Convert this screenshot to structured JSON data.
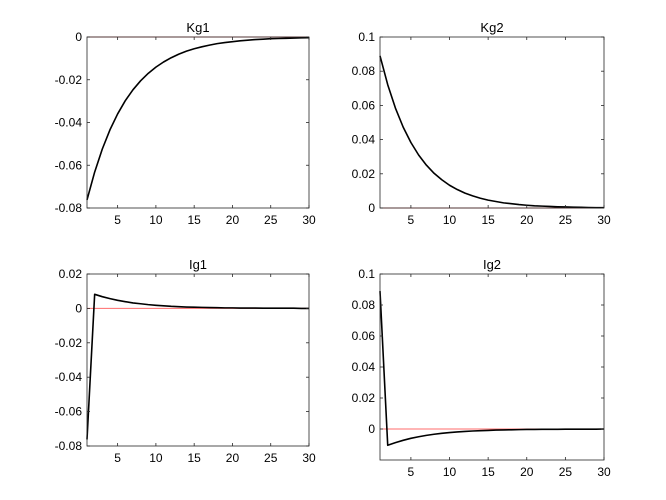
{
  "chart_data": [
    {
      "type": "line",
      "title": "Kg1",
      "xlim": [
        1,
        30
      ],
      "ylim": [
        -0.08,
        0
      ],
      "xticks": [
        5,
        10,
        15,
        20,
        25,
        30
      ],
      "yticks": [
        0,
        -0.02,
        -0.04,
        -0.06,
        -0.08
      ],
      "ytick_labels": [
        "0",
        "-0.02",
        "-0.04",
        "-0.06",
        "-0.08"
      ],
      "zero_line_color": "#ff6b6b",
      "series_color": "#000000",
      "series": [
        {
          "x": [
            1,
            2,
            3,
            4,
            5,
            6,
            7,
            8,
            9,
            10,
            11,
            12,
            13,
            14,
            15,
            16,
            17,
            18,
            19,
            20,
            21,
            22,
            23,
            24,
            25,
            26,
            27,
            28,
            29,
            30
          ],
          "values": [
            -0.0762,
            -0.0632,
            -0.0524,
            -0.0434,
            -0.036,
            -0.0298,
            -0.0247,
            -0.0205,
            -0.017,
            -0.0141,
            -0.0117,
            -0.0097,
            -0.008,
            -0.0066,
            -0.0055,
            -0.0046,
            -0.0038,
            -0.0031,
            -0.0026,
            -0.0022,
            -0.0018,
            -0.0015,
            -0.0012,
            -0.001,
            -0.0008,
            -0.0007,
            -0.0006,
            -0.0005,
            -0.0004,
            -0.0003
          ]
        }
      ]
    },
    {
      "type": "line",
      "title": "Kg2",
      "xlim": [
        1,
        30
      ],
      "ylim": [
        0,
        0.1
      ],
      "xticks": [
        5,
        10,
        15,
        20,
        25,
        30
      ],
      "yticks": [
        0,
        0.02,
        0.04,
        0.06,
        0.08,
        0.1
      ],
      "ytick_labels": [
        "0",
        "0.02",
        "0.04",
        "0.06",
        "0.08",
        "0.1"
      ],
      "zero_line_color": "#ff6b6b",
      "series_color": "#000000",
      "series": [
        {
          "x": [
            1,
            2,
            3,
            4,
            5,
            6,
            7,
            8,
            9,
            10,
            11,
            12,
            13,
            14,
            15,
            16,
            17,
            18,
            19,
            20,
            21,
            22,
            23,
            24,
            25,
            26,
            27,
            28,
            29,
            30
          ],
          "values": [
            0.089,
            0.0721,
            0.0584,
            0.0473,
            0.0383,
            0.031,
            0.0251,
            0.0203,
            0.0165,
            0.0133,
            0.0108,
            0.0087,
            0.0071,
            0.0057,
            0.0046,
            0.0038,
            0.003,
            0.0025,
            0.002,
            0.0016,
            0.0013,
            0.0011,
            0.0009,
            0.0007,
            0.0006,
            0.0005,
            0.0004,
            0.0003,
            0.0002,
            0.0002
          ]
        }
      ]
    },
    {
      "type": "line",
      "title": "Ig1",
      "xlim": [
        1,
        30
      ],
      "ylim": [
        -0.08,
        0.02
      ],
      "xticks": [
        5,
        10,
        15,
        20,
        25,
        30
      ],
      "yticks": [
        0.02,
        0,
        -0.02,
        -0.04,
        -0.06,
        -0.08
      ],
      "ytick_labels": [
        "0.02",
        "0",
        "-0.02",
        "-0.04",
        "-0.06",
        "-0.08"
      ],
      "zero_line_color": "#ff6b6b",
      "series_color": "#000000",
      "series": [
        {
          "x": [
            1,
            2,
            3,
            4,
            5,
            6,
            7,
            8,
            9,
            10,
            11,
            12,
            13,
            14,
            15,
            16,
            17,
            18,
            19,
            20,
            21,
            22,
            23,
            24,
            25,
            26,
            27,
            28,
            29,
            30
          ],
          "values": [
            -0.0762,
            0.0082,
            0.0068,
            0.0057,
            0.0047,
            0.0039,
            0.0032,
            0.0027,
            0.0022,
            0.0018,
            0.0015,
            0.0012,
            0.001,
            0.0008,
            0.0007,
            0.0006,
            0.0005,
            0.0004,
            0.0003,
            0.0003,
            0.0002,
            0.0002,
            0.0002,
            0.0001,
            0.0001,
            0.0001,
            0.0001,
            0.0001,
            0.0,
            0.0
          ]
        }
      ]
    },
    {
      "type": "line",
      "title": "Ig2",
      "xlim": [
        1,
        30
      ],
      "ylim": [
        -0.02,
        0.1
      ],
      "xticks": [
        5,
        10,
        15,
        20,
        25,
        30
      ],
      "yticks": [
        0.1,
        0.08,
        0.06,
        0.04,
        0.02,
        0
      ],
      "ytick_labels": [
        "0.1",
        "0.08",
        "0.06",
        "0.04",
        "0.02",
        "0"
      ],
      "zero_line_color": "#ff6b6b",
      "series_color": "#000000",
      "series": [
        {
          "x": [
            1,
            2,
            3,
            4,
            5,
            6,
            7,
            8,
            9,
            10,
            11,
            12,
            13,
            14,
            15,
            16,
            17,
            18,
            19,
            20,
            21,
            22,
            23,
            24,
            25,
            26,
            27,
            28,
            29,
            30
          ],
          "values": [
            0.089,
            -0.0105,
            -0.0088,
            -0.0073,
            -0.006,
            -0.005,
            -0.0041,
            -0.0034,
            -0.0028,
            -0.0023,
            -0.0019,
            -0.0016,
            -0.0013,
            -0.0011,
            -0.0009,
            -0.0007,
            -0.0006,
            -0.0005,
            -0.0004,
            -0.0003,
            -0.0003,
            -0.0002,
            -0.0002,
            -0.0002,
            -0.0001,
            -0.0001,
            -0.0001,
            -0.0001,
            -0.0001,
            0.0
          ]
        }
      ]
    }
  ]
}
